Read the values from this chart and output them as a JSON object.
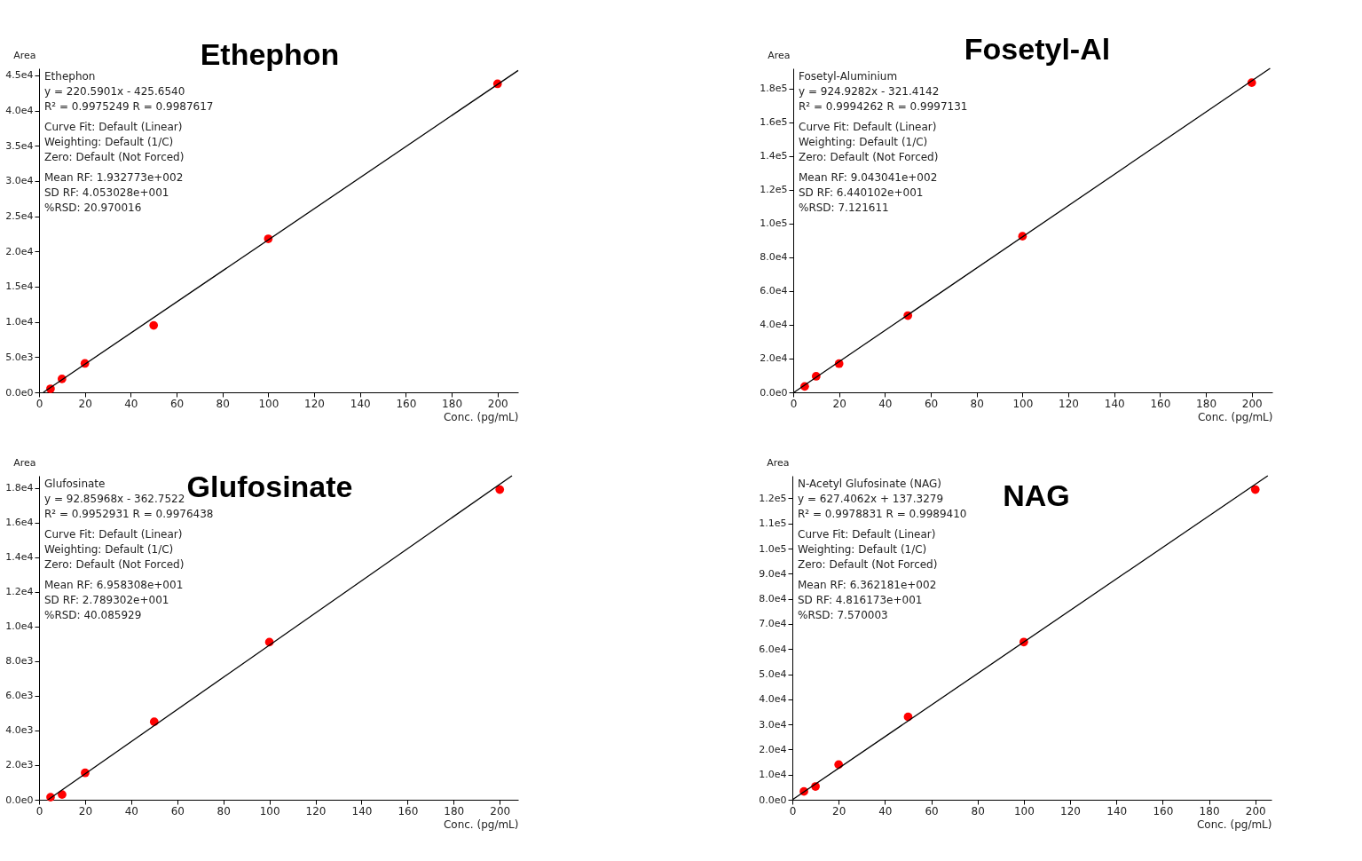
{
  "chart_data": [
    {
      "type": "scatter",
      "title": "Ethephon",
      "xlabel": "Conc. (pg/mL)",
      "ylabel": "Area",
      "xlim": [
        0,
        209
      ],
      "ylim": [
        0,
        46000
      ],
      "xticks": [
        0,
        20,
        40,
        60,
        80,
        100,
        120,
        140,
        160,
        180,
        200
      ],
      "yticks": [
        {
          "value": 0,
          "label": "0.0e0"
        },
        {
          "value": 5000,
          "label": "5.0e3"
        },
        {
          "value": 10000,
          "label": "1.0e4"
        },
        {
          "value": 15000,
          "label": "1.5e4"
        },
        {
          "value": 20000,
          "label": "2.0e4"
        },
        {
          "value": 25000,
          "label": "2.5e4"
        },
        {
          "value": 30000,
          "label": "3.0e4"
        },
        {
          "value": 35000,
          "label": "3.5e4"
        },
        {
          "value": 40000,
          "label": "4.0e4"
        },
        {
          "value": 45000,
          "label": "4.5e4"
        }
      ],
      "series": [
        {
          "color": "#ff0000",
          "marker": "circle",
          "x": [
            5,
            10,
            20,
            50,
            100,
            200
          ],
          "values": [
            500,
            1900,
            4100,
            9500,
            21800,
            43800
          ]
        },
        {
          "type": "line",
          "color": "#000000",
          "x": [
            1.9,
            209
          ],
          "values": [
            0,
            45700
          ]
        }
      ],
      "annotations": [
        "Ethephon",
        "y = 220.5901x - 425.6540",
        "R² = 0.9975249    R = 0.9987617",
        "Curve Fit: Default (Linear)",
        "Weighting: Default (1/C)",
        "Zero: Default (Not Forced)",
        "Mean RF: 1.932773e+002",
        "SD RF: 4.053028e+001",
        "%RSD: 20.970016"
      ]
    },
    {
      "type": "scatter",
      "title": "Fosetyl-Al",
      "xlabel": "Conc. (pg/mL)",
      "ylabel": "Area",
      "xlim": [
        0,
        209
      ],
      "ylim": [
        0,
        192000
      ],
      "xticks": [
        0,
        20,
        40,
        60,
        80,
        100,
        120,
        140,
        160,
        180,
        200
      ],
      "yticks": [
        {
          "value": 0,
          "label": "0.0e0"
        },
        {
          "value": 20000,
          "label": "2.0e4"
        },
        {
          "value": 40000,
          "label": "4.0e4"
        },
        {
          "value": 60000,
          "label": "6.0e4"
        },
        {
          "value": 80000,
          "label": "8.0e4"
        },
        {
          "value": 100000,
          "label": "1.0e5"
        },
        {
          "value": 120000,
          "label": "1.2e5"
        },
        {
          "value": 140000,
          "label": "1.4e5"
        },
        {
          "value": 160000,
          "label": "1.6e5"
        },
        {
          "value": 180000,
          "label": "1.8e5"
        }
      ],
      "series": [
        {
          "color": "#ff0000",
          "marker": "circle",
          "x": [
            5,
            10,
            20,
            50,
            100,
            200
          ],
          "values": [
            3500,
            9500,
            17000,
            45500,
            92500,
            183500
          ]
        },
        {
          "type": "line",
          "color": "#000000",
          "x": [
            0.35,
            208
          ],
          "values": [
            0,
            192000
          ]
        }
      ],
      "annotations": [
        "Fosetyl-Aluminium",
        "y = 924.9282x - 321.4142",
        "R² = 0.9994262    R = 0.9997131",
        "Curve Fit: Default (Linear)",
        "Weighting: Default (1/C)",
        "Zero: Default (Not Forced)",
        "Mean RF: 9.043041e+002",
        "SD RF: 6.440102e+001",
        "%RSD: 7.121611"
      ]
    },
    {
      "type": "scatter",
      "title": "Glufosinate",
      "xlabel": "Conc. (pg/mL)",
      "ylabel": "Area",
      "xlim": [
        0,
        208
      ],
      "ylim": [
        0,
        18700
      ],
      "xticks": [
        0,
        20,
        40,
        60,
        80,
        100,
        120,
        140,
        160,
        180,
        200
      ],
      "yticks": [
        {
          "value": 0,
          "label": "0.0e0"
        },
        {
          "value": 2000,
          "label": "2.0e3"
        },
        {
          "value": 4000,
          "label": "4.0e3"
        },
        {
          "value": 6000,
          "label": "6.0e3"
        },
        {
          "value": 8000,
          "label": "8.0e3"
        },
        {
          "value": 10000,
          "label": "1.0e4"
        },
        {
          "value": 12000,
          "label": "1.2e4"
        },
        {
          "value": 14000,
          "label": "1.4e4"
        },
        {
          "value": 16000,
          "label": "1.6e4"
        },
        {
          "value": 18000,
          "label": "1.8e4"
        }
      ],
      "series": [
        {
          "color": "#ff0000",
          "marker": "circle",
          "x": [
            5,
            10,
            20,
            50,
            100,
            200
          ],
          "values": [
            150,
            300,
            1550,
            4500,
            9100,
            17900
          ]
        },
        {
          "type": "line",
          "color": "#000000",
          "x": [
            3.9,
            205.3
          ],
          "values": [
            0,
            18700
          ]
        }
      ],
      "annotations": [
        "Glufosinate",
        "y = 92.85968x - 362.7522",
        "R² = 0.9952931    R = 0.9976438",
        "Curve Fit: Default (Linear)",
        "Weighting: Default (1/C)",
        "Zero: Default (Not Forced)",
        "Mean RF: 6.958308e+001",
        "SD RF: 2.789302e+001",
        "%RSD: 40.085929"
      ]
    },
    {
      "type": "scatter",
      "title": "NAG",
      "xlabel": "Conc. (pg/mL)",
      "ylabel": "Area",
      "xlim": [
        0,
        207
      ],
      "ylim": [
        0,
        129000
      ],
      "xticks": [
        0,
        20,
        40,
        60,
        80,
        100,
        120,
        140,
        160,
        180,
        200
      ],
      "yticks": [
        {
          "value": 0,
          "label": "0.0e0"
        },
        {
          "value": 10000,
          "label": "1.0e4"
        },
        {
          "value": 20000,
          "label": "2.0e4"
        },
        {
          "value": 30000,
          "label": "3.0e4"
        },
        {
          "value": 40000,
          "label": "4.0e4"
        },
        {
          "value": 50000,
          "label": "5.0e4"
        },
        {
          "value": 60000,
          "label": "6.0e4"
        },
        {
          "value": 70000,
          "label": "7.0e4"
        },
        {
          "value": 80000,
          "label": "8.0e4"
        },
        {
          "value": 90000,
          "label": "9.0e4"
        },
        {
          "value": 100000,
          "label": "1.0e5"
        },
        {
          "value": 110000,
          "label": "1.1e5"
        },
        {
          "value": 120000,
          "label": "1.2e5"
        }
      ],
      "series": [
        {
          "color": "#ff0000",
          "marker": "circle",
          "x": [
            5,
            10,
            20,
            50,
            100,
            200
          ],
          "values": [
            3300,
            5300,
            14000,
            33000,
            62800,
            123500
          ]
        },
        {
          "type": "line",
          "color": "#000000",
          "x": [
            0,
            205.4
          ],
          "values": [
            0,
            129000
          ]
        }
      ],
      "annotations": [
        "N-Acetyl Glufosinate (NAG)",
        "y = 627.4062x + 137.3279",
        "R² = 0.9978831    R = 0.9989410",
        "Curve Fit: Default (Linear)",
        "Weighting: Default (1/C)",
        "Zero: Default (Not Forced)",
        "Mean RF: 6.362181e+002",
        "SD RF: 4.816173e+001",
        "%RSD: 7.570003"
      ]
    }
  ]
}
